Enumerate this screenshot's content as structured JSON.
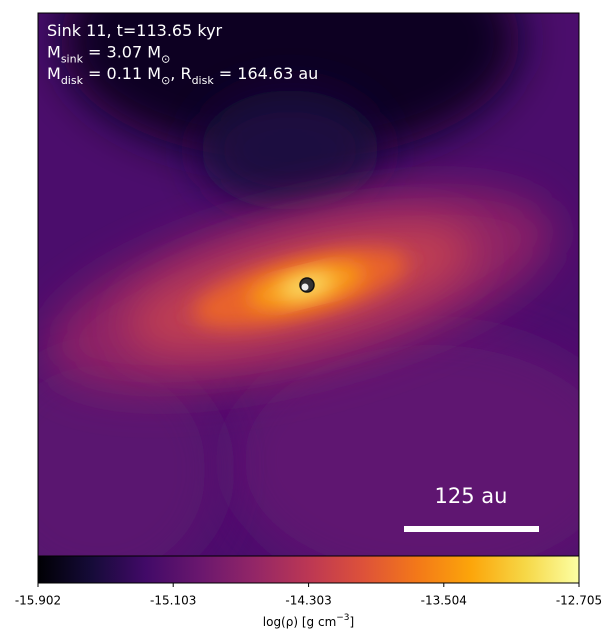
{
  "chart_data": {
    "type": "heatmap",
    "annotations": [
      [
        {
          "text": "Sink 11, t=113.65 kyr"
        }
      ],
      [
        {
          "text": "M"
        },
        {
          "text": "sink",
          "sub": true
        },
        {
          "text": " = 3.07 "
        },
        {
          "text": "M"
        },
        {
          "text": "⊙",
          "sub": true
        }
      ],
      [
        {
          "text": "M"
        },
        {
          "text": "disk",
          "sub": true
        },
        {
          "text": " = 0.11 "
        },
        {
          "text": "M"
        },
        {
          "text": "⊙",
          "sub": true
        },
        {
          "text": ", "
        },
        {
          "text": "R"
        },
        {
          "text": "disk",
          "sub": true
        },
        {
          "text": " = 164.63 au"
        }
      ]
    ],
    "scale_bar_label": "125 au",
    "colorbar": {
      "colormap": "inferno",
      "clim": [
        -15.902,
        -12.705
      ],
      "cticks": [
        -15.902,
        -15.103,
        -14.303,
        -13.504,
        -12.705
      ],
      "label": [
        {
          "text": "log(ρ) [g cm"
        },
        {
          "text": "−3",
          "sup": true
        },
        {
          "text": "]"
        }
      ]
    }
  }
}
